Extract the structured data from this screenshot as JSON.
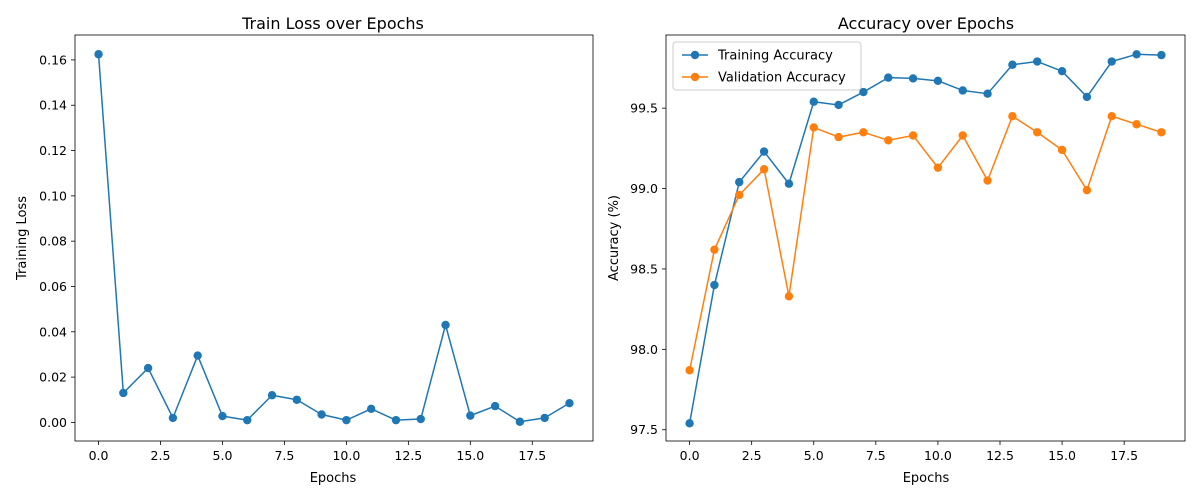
{
  "chart_data": [
    {
      "type": "line",
      "title": "Train Loss over Epochs",
      "xlabel": "Epochs",
      "ylabel": "Training Loss",
      "xlim": [
        -0.95,
        19.95
      ],
      "ylim": [
        -0.0082,
        0.171
      ],
      "xticks": [
        0.0,
        2.5,
        5.0,
        7.5,
        10.0,
        12.5,
        15.0,
        17.5
      ],
      "xtick_labels": [
        "0.0",
        "2.5",
        "5.0",
        "7.5",
        "10.0",
        "12.5",
        "15.0",
        "17.5"
      ],
      "yticks": [
        0.0,
        0.02,
        0.04,
        0.06,
        0.08,
        0.1,
        0.12,
        0.14,
        0.16
      ],
      "ytick_labels": [
        "0.00",
        "0.02",
        "0.04",
        "0.06",
        "0.08",
        "0.10",
        "0.12",
        "0.14",
        "0.16"
      ],
      "grid": false,
      "x": [
        0,
        1,
        2,
        3,
        4,
        5,
        6,
        7,
        8,
        9,
        10,
        11,
        12,
        13,
        14,
        15,
        16,
        17,
        18,
        19
      ],
      "series": [
        {
          "color": "#1f77b4",
          "values": [
            0.1625,
            0.013,
            0.024,
            0.002,
            0.0295,
            0.0028,
            0.001,
            0.012,
            0.01,
            0.0035,
            0.001,
            0.006,
            0.001,
            0.0015,
            0.043,
            0.003,
            0.0072,
            0.0003,
            0.002,
            0.0085
          ]
        }
      ]
    },
    {
      "type": "line",
      "title": "Accuracy over Epochs",
      "xlabel": "Epochs",
      "ylabel": "Accuracy (%)",
      "xlim": [
        -0.95,
        19.95
      ],
      "ylim": [
        97.43,
        99.955
      ],
      "xticks": [
        0.0,
        2.5,
        5.0,
        7.5,
        10.0,
        12.5,
        15.0,
        17.5
      ],
      "xtick_labels": [
        "0.0",
        "2.5",
        "5.0",
        "7.5",
        "10.0",
        "12.5",
        "15.0",
        "17.5"
      ],
      "yticks": [
        97.5,
        98.0,
        98.5,
        99.0,
        99.5
      ],
      "ytick_labels": [
        "97.5",
        "98.0",
        "98.5",
        "99.0",
        "99.5"
      ],
      "grid": false,
      "legend": "top-left",
      "x": [
        0,
        1,
        2,
        3,
        4,
        5,
        6,
        7,
        8,
        9,
        10,
        11,
        12,
        13,
        14,
        15,
        16,
        17,
        18,
        19
      ],
      "series": [
        {
          "name": "Training Accuracy",
          "color": "#1f77b4",
          "values": [
            97.54,
            98.4,
            99.04,
            99.23,
            99.03,
            99.54,
            99.52,
            99.6,
            99.69,
            99.685,
            99.67,
            99.61,
            99.59,
            99.77,
            99.79,
            99.73,
            99.57,
            99.79,
            99.835,
            99.83
          ]
        },
        {
          "name": "Validation Accuracy",
          "color": "#ff7f0e",
          "values": [
            97.87,
            98.62,
            98.96,
            99.12,
            98.33,
            99.38,
            99.32,
            99.35,
            99.3,
            99.33,
            99.13,
            99.33,
            99.05,
            99.45,
            99.35,
            99.24,
            98.99,
            99.45,
            99.4,
            99.35
          ]
        }
      ]
    }
  ]
}
